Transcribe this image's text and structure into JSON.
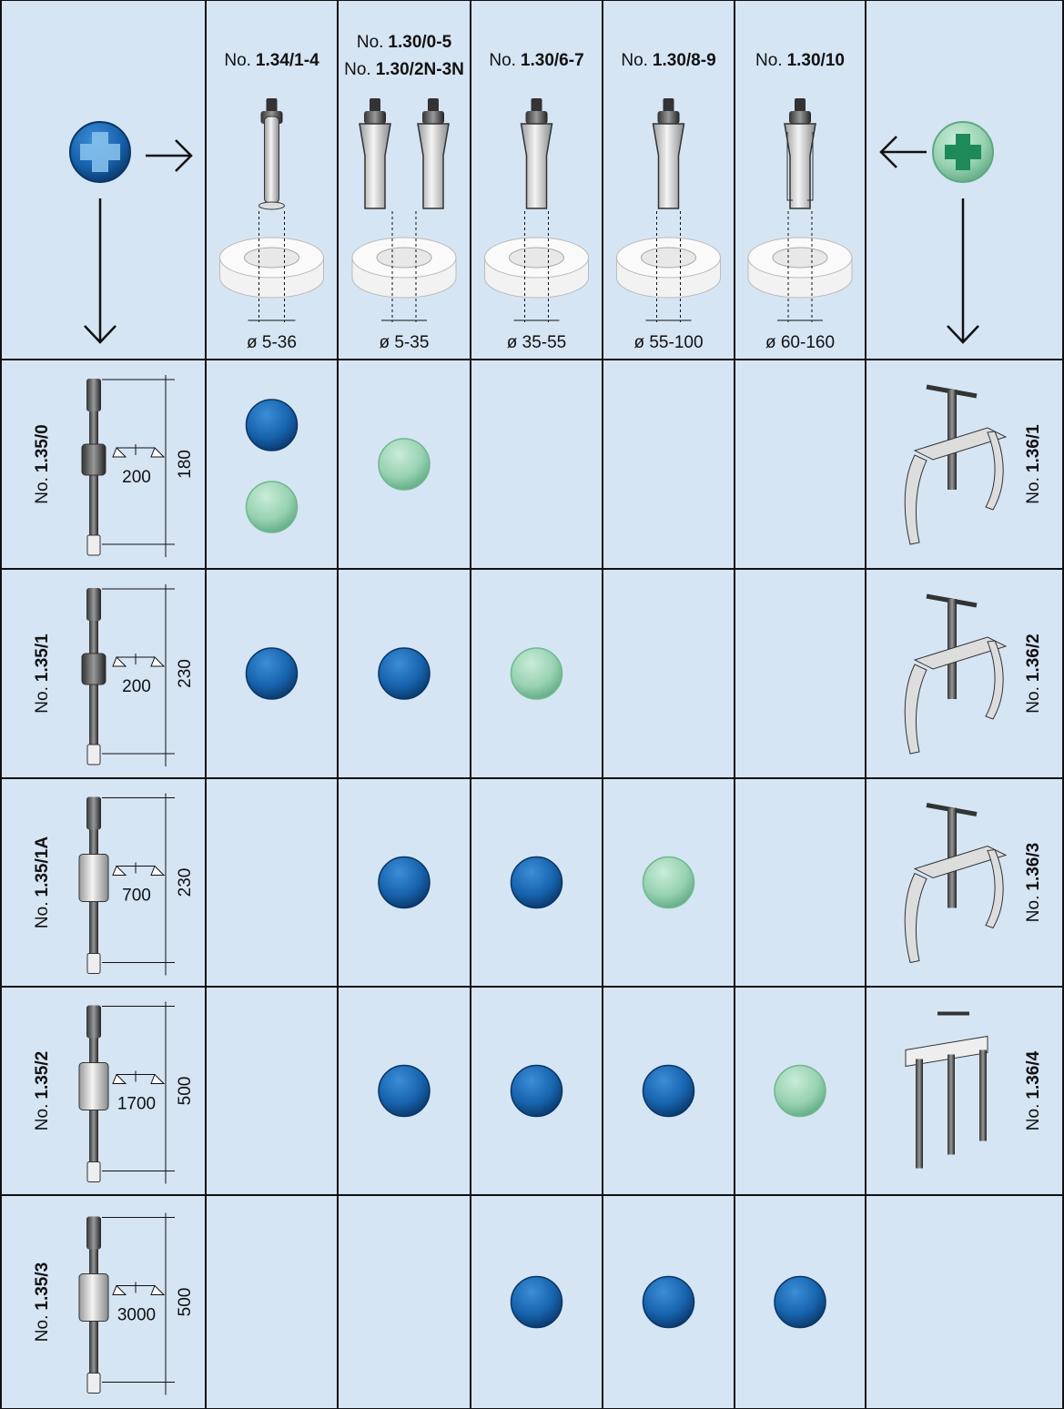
{
  "header": {
    "columns": [
      {
        "labels": [
          {
            "prefix": "No.",
            "code": "1.34/1-4"
          }
        ],
        "diameter": "ø 5-36"
      },
      {
        "labels": [
          {
            "prefix": "No.",
            "code": "1.30/0-5"
          },
          {
            "prefix": "No.",
            "code": "1.30/2N-3N"
          }
        ],
        "diameter": "ø 5-35"
      },
      {
        "labels": [
          {
            "prefix": "No.",
            "code": "1.30/6-7"
          }
        ],
        "diameter": "ø 35-55"
      },
      {
        "labels": [
          {
            "prefix": "No.",
            "code": "1.30/8-9"
          }
        ],
        "diameter": "ø 55-100"
      },
      {
        "labels": [
          {
            "prefix": "No.",
            "code": "1.30/10"
          }
        ],
        "diameter": "ø 60-160"
      }
    ]
  },
  "rows": [
    {
      "left": {
        "prefix": "No.",
        "code": "1.35/0"
      },
      "weight": "200",
      "length": "180",
      "right": {
        "prefix": "No.",
        "code": "1.36/1"
      },
      "cells": [
        [
          "blue",
          "green"
        ],
        [
          "green"
        ],
        [],
        [],
        []
      ]
    },
    {
      "left": {
        "prefix": "No.",
        "code": "1.35/1"
      },
      "weight": "200",
      "length": "230",
      "right": {
        "prefix": "No.",
        "code": "1.36/2"
      },
      "cells": [
        [
          "blue"
        ],
        [
          "blue"
        ],
        [
          "green"
        ],
        [],
        []
      ]
    },
    {
      "left": {
        "prefix": "No.",
        "code": "1.35/1A"
      },
      "weight": "700",
      "length": "230",
      "right": {
        "prefix": "No.",
        "code": "1.36/3"
      },
      "cells": [
        [],
        [
          "blue"
        ],
        [
          "blue"
        ],
        [
          "green"
        ],
        []
      ]
    },
    {
      "left": {
        "prefix": "No.",
        "code": "1.35/2"
      },
      "weight": "1700",
      "length": "500",
      "right": {
        "prefix": "No.",
        "code": "1.36/4"
      },
      "cells": [
        [],
        [
          "blue"
        ],
        [
          "blue"
        ],
        [
          "blue"
        ],
        [
          "green"
        ]
      ]
    },
    {
      "left": {
        "prefix": "No.",
        "code": "1.35/3"
      },
      "weight": "3000",
      "length": "500",
      "cells": [
        [],
        [],
        [
          "blue"
        ],
        [
          "blue"
        ],
        [
          "blue"
        ]
      ]
    }
  ]
}
